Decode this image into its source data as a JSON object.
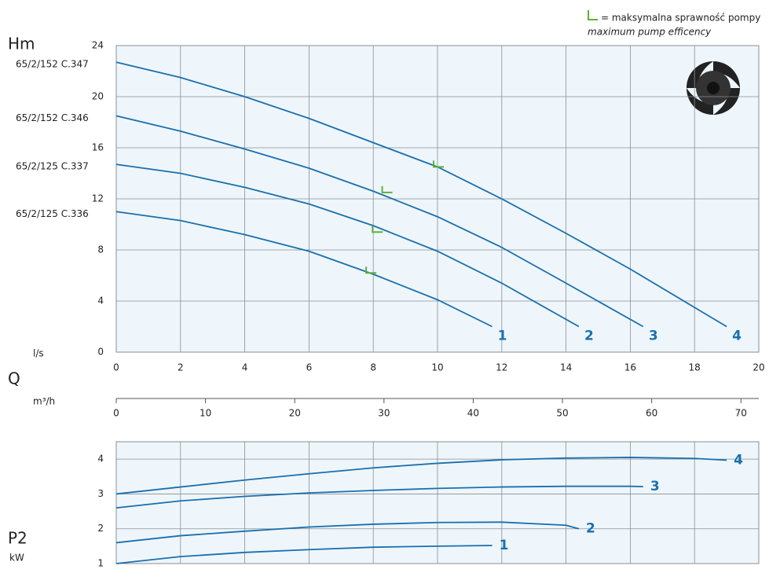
{
  "legend": {
    "text": "= maksymalna sprawność pompy",
    "subtext": "maximum pump efficency",
    "marker_color": "#5cb13a"
  },
  "chart_data": [
    {
      "type": "line",
      "y_label": "Hm",
      "x_label": "l/s",
      "xlim": [
        0,
        20
      ],
      "xticks": [
        0,
        2,
        4,
        6,
        8,
        10,
        12,
        14,
        16,
        18,
        20
      ],
      "ylim": [
        0,
        24
      ],
      "yticks": [
        0,
        4,
        8,
        12,
        16,
        20,
        24
      ],
      "grid": true,
      "series": [
        {
          "name": "65/2/152 C.347",
          "label": "4",
          "color": "#1a6fae",
          "x": [
            0,
            2,
            4,
            6,
            8,
            10,
            12,
            14,
            16,
            18,
            19
          ],
          "values": [
            22.7,
            21.5,
            20,
            18.3,
            16.4,
            14.5,
            12,
            9.3,
            6.5,
            3.5,
            2
          ],
          "efficiency_max": {
            "x": 10,
            "value": 14.5
          }
        },
        {
          "name": "65/2/152 C.346",
          "label": "3",
          "color": "#1a6fae",
          "x": [
            0,
            2,
            4,
            6,
            8,
            10,
            12,
            14,
            16.4
          ],
          "values": [
            18.5,
            17.3,
            15.9,
            14.4,
            12.6,
            10.6,
            8.2,
            5.4,
            2
          ],
          "efficiency_max": {
            "x": 8.4,
            "value": 12.5
          }
        },
        {
          "name": "65/2/125 C.337",
          "label": "2",
          "color": "#1a6fae",
          "x": [
            0,
            2,
            4,
            6,
            8,
            10,
            12,
            14.4
          ],
          "values": [
            14.7,
            14,
            12.9,
            11.6,
            9.9,
            7.9,
            5.4,
            2
          ],
          "efficiency_max": {
            "x": 8.1,
            "value": 9.4
          }
        },
        {
          "name": "65/2/125 C.336",
          "label": "1",
          "color": "#1a6fae",
          "x": [
            0,
            2,
            4,
            6,
            8,
            10,
            11.7
          ],
          "values": [
            11,
            10.3,
            9.2,
            7.9,
            6.1,
            4.1,
            2
          ],
          "efficiency_max": {
            "x": 7.9,
            "value": 6.2
          }
        }
      ]
    },
    {
      "type": "axis",
      "title": "Q",
      "x_label": "m³/h",
      "xlim": [
        0,
        72
      ],
      "xticks": [
        0,
        10,
        20,
        30,
        40,
        50,
        60,
        70
      ]
    },
    {
      "type": "line",
      "y_label": "P2",
      "y_unit": "kW",
      "xlim": [
        0,
        20
      ],
      "xticks": [
        0,
        2,
        4,
        6,
        8,
        10,
        12,
        14,
        16,
        18,
        20
      ],
      "ylim": [
        1,
        4.5
      ],
      "yticks": [
        1,
        2,
        3,
        4
      ],
      "grid": true,
      "series": [
        {
          "label": "4",
          "color": "#1a6fae",
          "x": [
            0,
            2,
            4,
            6,
            8,
            10,
            12,
            14,
            16,
            18,
            19
          ],
          "values": [
            3,
            3.2,
            3.4,
            3.58,
            3.75,
            3.88,
            3.98,
            4.03,
            4.05,
            4.02,
            3.97
          ]
        },
        {
          "label": "3",
          "color": "#1a6fae",
          "x": [
            0,
            2,
            4,
            6,
            8,
            10,
            12,
            14,
            16,
            16.4
          ],
          "values": [
            2.6,
            2.8,
            2.93,
            3.03,
            3.1,
            3.16,
            3.2,
            3.22,
            3.22,
            3.21
          ]
        },
        {
          "label": "2",
          "color": "#1a6fae",
          "x": [
            0,
            2,
            4,
            6,
            8,
            10,
            12,
            14,
            14.4
          ],
          "values": [
            1.6,
            1.8,
            1.93,
            2.05,
            2.13,
            2.18,
            2.19,
            2.1,
            2
          ]
        },
        {
          "label": "1",
          "color": "#1a6fae",
          "x": [
            0,
            2,
            4,
            6,
            8,
            10,
            11.7
          ],
          "values": [
            1,
            1.2,
            1.32,
            1.4,
            1.47,
            1.5,
            1.52
          ]
        }
      ]
    }
  ]
}
